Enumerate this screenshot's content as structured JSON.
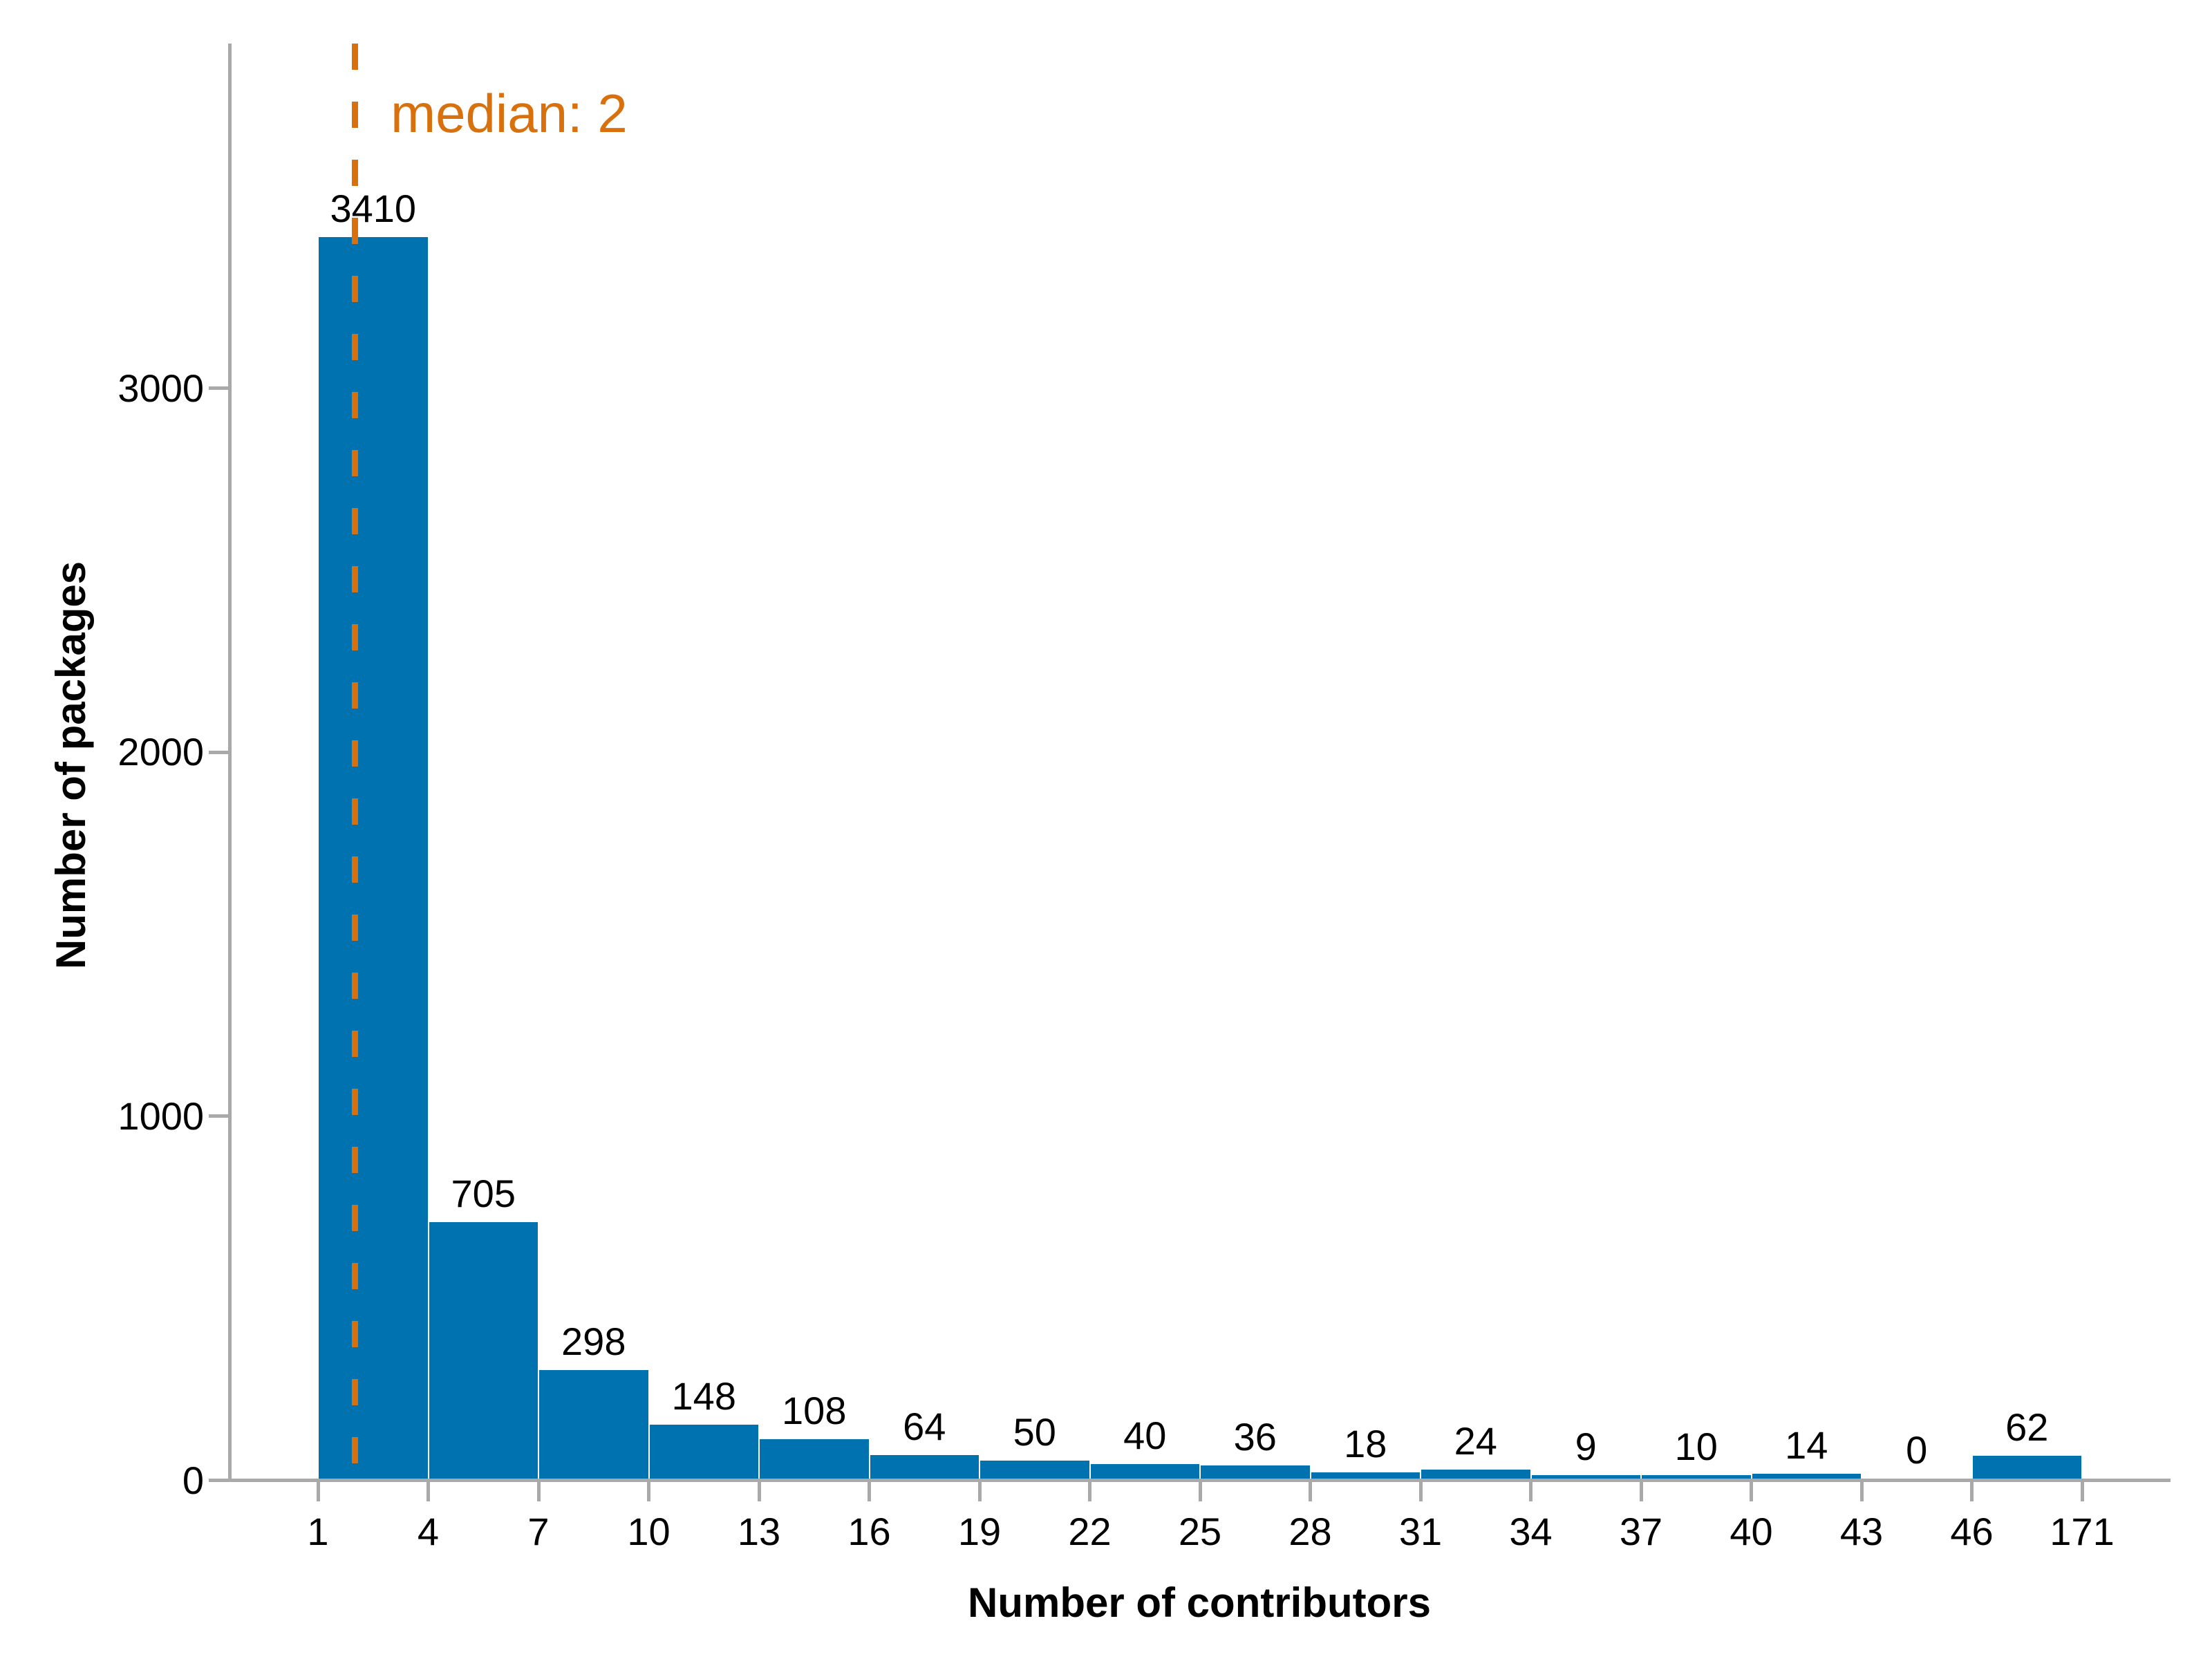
{
  "chart_data": {
    "type": "bar",
    "subtype": "histogram",
    "title": "",
    "xlabel": "Number of contributors",
    "ylabel": "Number of packages",
    "categories": [
      "1-4",
      "4-7",
      "7-10",
      "10-13",
      "13-16",
      "16-19",
      "19-22",
      "22-25",
      "25-28",
      "28-31",
      "31-34",
      "34-37",
      "37-40",
      "40-43",
      "43-46",
      "46-171"
    ],
    "values": [
      3410,
      705,
      298,
      148,
      108,
      64,
      50,
      40,
      36,
      18,
      24,
      9,
      10,
      14,
      0,
      62
    ],
    "bar_value_labels": [
      "3410",
      "705",
      "298",
      "148",
      "108",
      "64",
      "50",
      "40",
      "36",
      "18",
      "24",
      "9",
      "10",
      "14",
      "0",
      "62"
    ],
    "x_tick_labels": [
      "1",
      "4",
      "7",
      "10",
      "13",
      "16",
      "19",
      "22",
      "25",
      "28",
      "31",
      "34",
      "37",
      "40",
      "43",
      "46",
      "171"
    ],
    "y_ticks": [
      0,
      1000,
      2000,
      3000
    ],
    "y_tick_labels": [
      "0",
      "1000",
      "2000",
      "3000"
    ],
    "ylim": [
      0,
      3942
    ],
    "grid": false,
    "legend": false,
    "median": {
      "value": 2,
      "label": "median: 2"
    },
    "colors": {
      "bar": "#0072b0",
      "median": "#d8700d",
      "axis": "#a9a9a9",
      "text": "#000000"
    }
  }
}
